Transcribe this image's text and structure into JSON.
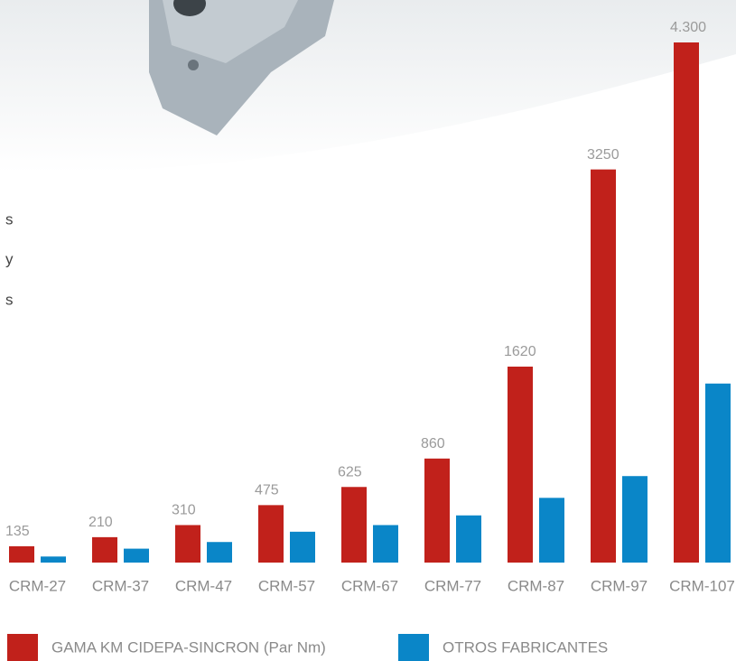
{
  "side_text": [
    "s",
    "y",
    "s"
  ],
  "chart_data": {
    "type": "bar",
    "categories": [
      "CRM-27",
      "CRM-37",
      "CRM-47",
      "CRM-57",
      "CRM-67",
      "CRM-77",
      "CRM-87",
      "CRM-97",
      "CRM-107"
    ],
    "series": [
      {
        "name": "GAMA KM CIDEPA-SINCRON (Par Nm)",
        "color": "#c1211b",
        "values": [
          135,
          210,
          310,
          475,
          625,
          860,
          1620,
          3250,
          4300
        ],
        "value_labels": [
          "135",
          "210",
          "310",
          "475",
          "625",
          "860",
          "1620",
          "3250",
          "4.300"
        ]
      },
      {
        "name": "OTROS FABRICANTES",
        "color": "#0a86c8",
        "values": [
          50,
          115,
          170,
          255,
          310,
          390,
          535,
          715,
          1480
        ]
      }
    ]
  }
}
